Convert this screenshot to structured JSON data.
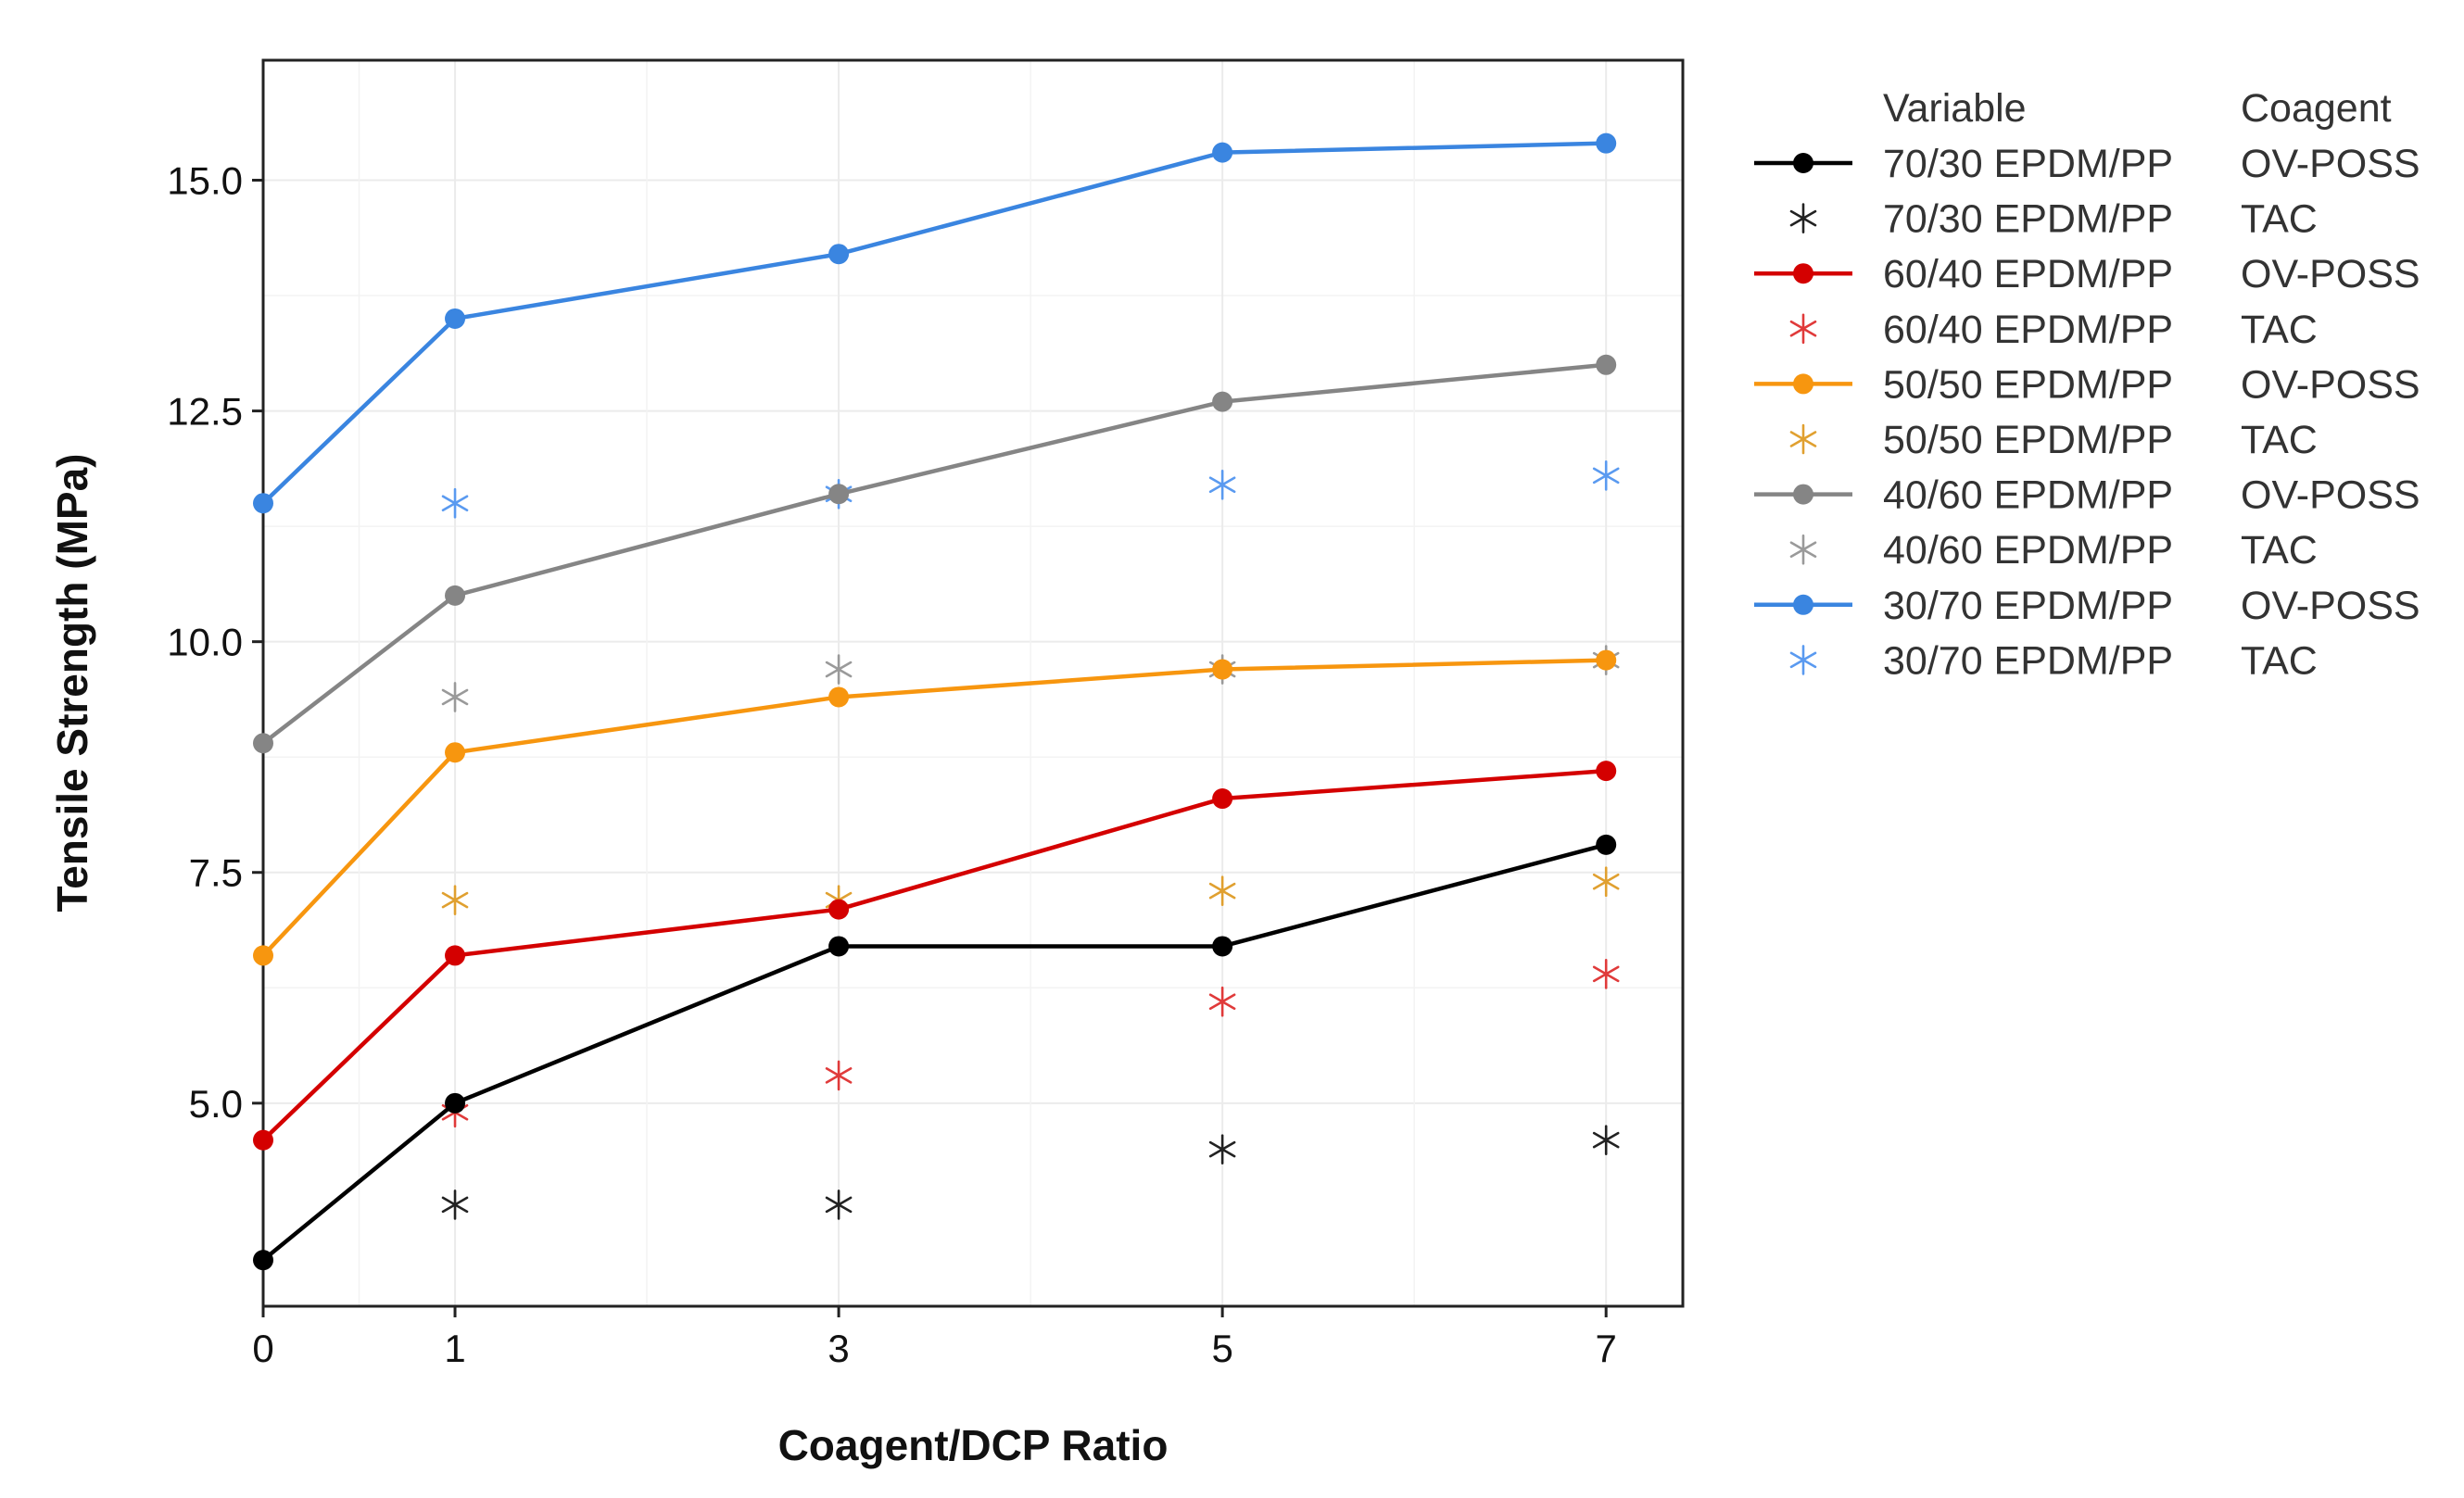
{
  "chart_data": {
    "type": "line",
    "xlabel": "Coagent/DCP Ratio",
    "ylabel": "Tensile Strength (MPa)",
    "x": [
      0,
      1,
      3,
      5,
      7
    ],
    "xlim": [
      0,
      7.4
    ],
    "ylim": [
      2.8,
      16.3
    ],
    "x_ticks": [
      0,
      1,
      3,
      5,
      7
    ],
    "y_ticks": [
      5.0,
      7.5,
      10.0,
      12.5,
      15.0
    ],
    "y_tick_labels": [
      "5.0",
      "7.5",
      "10.0",
      "12.5",
      "15.0"
    ],
    "grid": true,
    "legend": {
      "position": "right",
      "header_variable": "Variable",
      "header_coagent": "Coagent"
    },
    "series": [
      {
        "name": "70/30 EPDM/PP",
        "coagent": "OV-POSS",
        "style": "line-dot",
        "color": "#000000",
        "x": [
          0,
          1,
          3,
          5,
          7
        ],
        "values": [
          3.3,
          5.0,
          6.7,
          6.7,
          7.8
        ]
      },
      {
        "name": "70/30 EPDM/PP",
        "coagent": "TAC",
        "style": "asterisk",
        "color": "#222222",
        "x": [
          1,
          3,
          5,
          7
        ],
        "values": [
          3.9,
          3.9,
          4.5,
          4.6
        ]
      },
      {
        "name": "60/40 EPDM/PP",
        "coagent": "OV-POSS",
        "style": "line-dot",
        "color": "#d40000",
        "x": [
          0,
          1,
          3,
          5,
          7
        ],
        "values": [
          4.6,
          6.6,
          7.1,
          8.3,
          8.6
        ]
      },
      {
        "name": "60/40 EPDM/PP",
        "coagent": "TAC",
        "style": "asterisk",
        "color": "#e03a3a",
        "x": [
          1,
          3,
          5,
          7
        ],
        "values": [
          4.9,
          5.3,
          6.1,
          6.4
        ]
      },
      {
        "name": "50/50 EPDM/PP",
        "coagent": "OV-POSS",
        "style": "line-dot",
        "color": "#f7960f",
        "x": [
          0,
          1,
          3,
          5,
          7
        ],
        "values": [
          6.6,
          8.8,
          9.4,
          9.7,
          9.8
        ]
      },
      {
        "name": "50/50 EPDM/PP",
        "coagent": "TAC",
        "style": "asterisk",
        "color": "#e0a030",
        "x": [
          1,
          3,
          5,
          7
        ],
        "values": [
          7.2,
          7.2,
          7.3,
          7.4
        ]
      },
      {
        "name": "40/60 EPDM/PP",
        "coagent": "OV-POSS",
        "style": "line-dot",
        "color": "#858585",
        "x": [
          0,
          1,
          3,
          5,
          7
        ],
        "values": [
          8.9,
          10.5,
          11.6,
          12.6,
          13.0
        ]
      },
      {
        "name": "40/60 EPDM/PP",
        "coagent": "TAC",
        "style": "asterisk",
        "color": "#9a9a9a",
        "x": [
          1,
          3,
          5,
          7
        ],
        "values": [
          9.4,
          9.7,
          9.7,
          9.8
        ]
      },
      {
        "name": "30/70 EPDM/PP",
        "coagent": "OV-POSS",
        "style": "line-dot",
        "color": "#3a85e0",
        "x": [
          0,
          1,
          3,
          5,
          7
        ],
        "values": [
          11.5,
          13.5,
          14.2,
          15.3,
          15.4
        ]
      },
      {
        "name": "30/70 EPDM/PP",
        "coagent": "TAC",
        "style": "asterisk",
        "color": "#5a9af0",
        "x": [
          1,
          3,
          5,
          7
        ],
        "values": [
          11.5,
          11.6,
          11.7,
          11.8
        ]
      }
    ]
  }
}
